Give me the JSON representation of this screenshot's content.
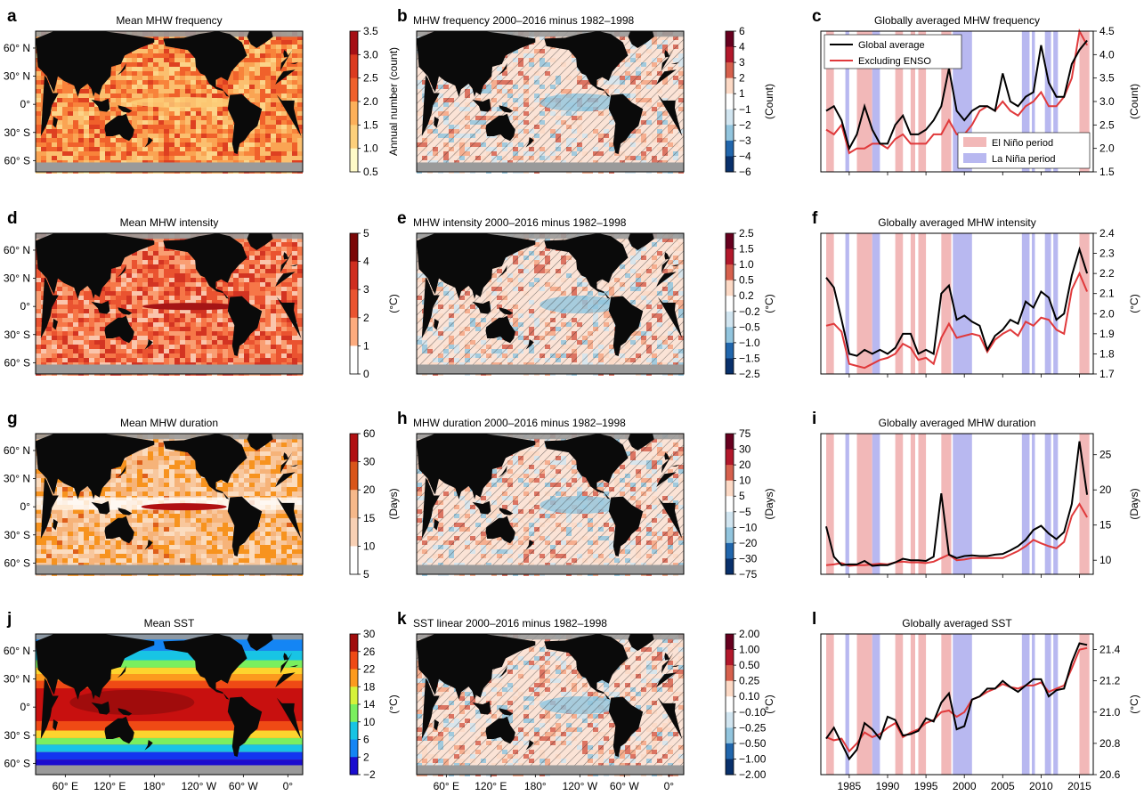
{
  "colors": {
    "land": "#0a0a0a",
    "ice": "#9a9a9a",
    "el_nino": "#f2b8b8",
    "la_nina": "#b8b8f0",
    "global_line": "#000000",
    "exclude_line": "#e0393b"
  },
  "map_axes": {
    "lat_labels": [
      "60° N",
      "30° N",
      "0°",
      "30° S",
      "60° S"
    ],
    "lon_labels": [
      "60° E",
      "120° E",
      "180°",
      "120° W",
      "60° W",
      "0°"
    ]
  },
  "year_ticks": [
    "1985",
    "1990",
    "1995",
    "2000",
    "2005",
    "2010",
    "2015"
  ],
  "enso": {
    "el_nino": [
      [
        1982,
        1983
      ],
      [
        1986,
        1988
      ],
      [
        1991,
        1992
      ],
      [
        1993,
        1993.6
      ],
      [
        1994,
        1995
      ],
      [
        1997,
        1998.3
      ],
      [
        2015,
        2016.3
      ]
    ],
    "la_nina": [
      [
        1984.5,
        1985
      ],
      [
        1988,
        1989
      ],
      [
        1998.5,
        2001
      ],
      [
        2007.5,
        2008.5
      ],
      [
        2008.8,
        2009.2
      ],
      [
        2010.5,
        2011.3
      ],
      [
        2011.6,
        2012.2
      ]
    ]
  },
  "legend": {
    "global": "Global average",
    "excluding": "Excluding ENSO",
    "el_nino": "El Niño period",
    "la_nina": "La Niña period"
  },
  "rows": [
    {
      "map_letter": "a",
      "map_title": "Mean MHW frequency",
      "map_cmap": "seq_orange",
      "map_cbar_label": "Annual number (count)",
      "map_cbar_ticks": [
        "3.5",
        "3.0",
        "2.5",
        "2.0",
        "1.5",
        "1.0",
        "0.5"
      ],
      "diff_letter": "b",
      "diff_title": "MHW frequency 2000–2016 minus 1982–1998",
      "diff_cbar_label": "(Count)",
      "diff_cbar_ticks": [
        "6",
        "4",
        "3",
        "2",
        "1",
        "−1",
        "−2",
        "−3",
        "−4",
        "−6"
      ],
      "ts_letter": "c",
      "ts_title": "Globally averaged MHW frequency",
      "ts_ylabel": "(Count)",
      "ts_show_legend": true
    },
    {
      "map_letter": "d",
      "map_title": "Mean MHW intensity",
      "map_cmap": "seq_red",
      "map_cbar_label": "(°C)",
      "map_cbar_ticks": [
        "5",
        "4",
        "3",
        "2",
        "1",
        "0"
      ],
      "diff_letter": "e",
      "diff_title": "MHW intensity 2000–2016 minus 1982–1998",
      "diff_cbar_label": "(°C)",
      "diff_cbar_ticks": [
        "2.5",
        "1.5",
        "1.0",
        "0.5",
        "0.2",
        "−0.2",
        "−0.5",
        "−1.0",
        "−1.5",
        "−2.5"
      ],
      "ts_letter": "f",
      "ts_title": "Globally averaged MHW intensity",
      "ts_ylabel": "(°C)",
      "ts_show_legend": false
    },
    {
      "map_letter": "g",
      "map_title": "Mean MHW duration",
      "map_cmap": "seq_dur",
      "map_cbar_label": "(Days)",
      "map_cbar_ticks": [
        "60",
        "30",
        "20",
        "15",
        "10",
        "5"
      ],
      "diff_letter": "h",
      "diff_title": "MHW duration 2000–2016 minus 1982–1998",
      "diff_cbar_label": "(Days)",
      "diff_cbar_ticks": [
        "75",
        "30",
        "20",
        "10",
        "5",
        "−5",
        "−10",
        "−20",
        "−30",
        "−75"
      ],
      "ts_letter": "i",
      "ts_title": "Globally averaged MHW duration",
      "ts_ylabel": "(Days)",
      "ts_show_legend": false
    },
    {
      "map_letter": "j",
      "map_title": "Mean SST",
      "map_cmap": "jet",
      "map_cbar_label": "(°C)",
      "map_cbar_ticks": [
        "30",
        "26",
        "22",
        "18",
        "14",
        "10",
        "6",
        "2",
        "−2"
      ],
      "diff_letter": "k",
      "diff_title": "SST linear 2000–2016 minus 1982–1998",
      "diff_cbar_label": "(°C)",
      "diff_cbar_ticks": [
        "2.00",
        "1.00",
        "0.50",
        "0.25",
        "0.10",
        "−0.10",
        "−0.25",
        "−0.50",
        "−1.00",
        "−2.00"
      ],
      "ts_letter": "l",
      "ts_title": "Globally averaged SST",
      "ts_ylabel": "(°C)",
      "ts_show_legend": false
    }
  ],
  "chart_data": [
    {
      "type": "line",
      "panel": "c",
      "title": "Globally averaged MHW frequency",
      "ylabel": "(Count)",
      "ylim": [
        1.5,
        4.5
      ],
      "yticks": [
        "1.5",
        "2.0",
        "2.5",
        "3.0",
        "3.5",
        "4.0",
        "4.5"
      ],
      "x": [
        1982,
        1983,
        1984,
        1985,
        1986,
        1987,
        1988,
        1989,
        1990,
        1991,
        1992,
        1993,
        1994,
        1995,
        1996,
        1997,
        1998,
        1999,
        2000,
        2001,
        2002,
        2003,
        2004,
        2005,
        2006,
        2007,
        2008,
        2009,
        2010,
        2011,
        2012,
        2013,
        2014,
        2015,
        2016
      ],
      "series": [
        {
          "name": "Global average",
          "values": [
            2.8,
            2.9,
            2.6,
            2.0,
            2.3,
            2.9,
            2.4,
            2.1,
            2.1,
            2.5,
            2.7,
            2.3,
            2.3,
            2.4,
            2.6,
            2.9,
            3.7,
            2.8,
            2.6,
            2.8,
            2.9,
            2.9,
            2.8,
            3.6,
            3.0,
            2.9,
            3.1,
            3.2,
            4.2,
            3.4,
            3.1,
            3.1,
            3.8,
            4.1,
            4.3
          ]
        },
        {
          "name": "Excluding ENSO",
          "values": [
            2.4,
            2.3,
            2.5,
            1.9,
            2.0,
            2.0,
            2.1,
            2.1,
            2.0,
            2.2,
            2.3,
            2.1,
            2.1,
            2.1,
            2.3,
            2.3,
            2.6,
            2.3,
            2.3,
            2.5,
            2.8,
            2.9,
            2.8,
            3.0,
            2.8,
            2.7,
            2.9,
            3.0,
            3.2,
            2.9,
            2.9,
            3.1,
            3.5,
            4.5,
            4.2
          ]
        }
      ]
    },
    {
      "type": "line",
      "panel": "f",
      "title": "Globally averaged MHW intensity",
      "ylabel": "(°C)",
      "ylim": [
        1.7,
        2.4
      ],
      "yticks": [
        "1.7",
        "1.8",
        "1.9",
        "2.0",
        "2.1",
        "2.2",
        "2.3",
        "2.4"
      ],
      "x": [
        1982,
        1983,
        1984,
        1985,
        1986,
        1987,
        1988,
        1989,
        1990,
        1991,
        1992,
        1993,
        1994,
        1995,
        1996,
        1997,
        1998,
        1999,
        2000,
        2001,
        2002,
        2003,
        2004,
        2005,
        2006,
        2007,
        2008,
        2009,
        2010,
        2011,
        2012,
        2013,
        2014,
        2015,
        2016
      ],
      "series": [
        {
          "name": "Global average",
          "values": [
            2.18,
            2.13,
            1.97,
            1.8,
            1.79,
            1.82,
            1.8,
            1.82,
            1.8,
            1.83,
            1.9,
            1.9,
            1.8,
            1.82,
            1.8,
            2.1,
            2.14,
            1.97,
            1.99,
            1.96,
            1.94,
            1.82,
            1.89,
            1.92,
            1.97,
            1.95,
            2.06,
            2.03,
            2.11,
            2.08,
            1.97,
            2.0,
            2.19,
            2.32,
            2.2
          ]
        },
        {
          "name": "Excluding ENSO",
          "values": [
            1.94,
            1.95,
            1.91,
            1.75,
            1.74,
            1.73,
            1.75,
            1.77,
            1.78,
            1.8,
            1.85,
            1.83,
            1.77,
            1.78,
            1.75,
            1.88,
            1.95,
            1.88,
            1.89,
            1.9,
            1.89,
            1.81,
            1.87,
            1.9,
            1.92,
            1.89,
            1.96,
            1.94,
            1.98,
            1.97,
            1.92,
            1.9,
            2.12,
            2.2,
            2.11
          ]
        }
      ]
    },
    {
      "type": "line",
      "panel": "i",
      "title": "Globally averaged MHW duration",
      "ylabel": "(Days)",
      "ylim": [
        8,
        28
      ],
      "yticks": [
        "10",
        "15",
        "20",
        "25"
      ],
      "x": [
        1982,
        1983,
        1984,
        1985,
        1986,
        1987,
        1988,
        1989,
        1990,
        1991,
        1992,
        1993,
        1994,
        1995,
        1996,
        1997,
        1998,
        1999,
        2000,
        2001,
        2002,
        2003,
        2004,
        2005,
        2006,
        2007,
        2008,
        2009,
        2010,
        2011,
        2012,
        2013,
        2014,
        2015,
        2016
      ],
      "series": [
        {
          "name": "Global average",
          "values": [
            14.8,
            10.5,
            9.3,
            9.4,
            9.4,
            9.9,
            9.2,
            9.3,
            9.3,
            9.7,
            10.2,
            10.0,
            10.0,
            9.9,
            10.5,
            19.5,
            10.8,
            10.3,
            10.6,
            10.7,
            10.6,
            10.6,
            10.8,
            10.9,
            11.4,
            12.0,
            12.9,
            14.3,
            14.9,
            13.8,
            13.0,
            14.0,
            18.0,
            26.9,
            19.3
          ]
        },
        {
          "name": "Excluding ENSO",
          "values": [
            9.3,
            9.4,
            9.6,
            9.2,
            9.3,
            9.3,
            9.4,
            9.5,
            9.4,
            9.7,
            9.8,
            9.7,
            9.7,
            9.6,
            9.8,
            10.3,
            10.8,
            10.0,
            10.1,
            10.3,
            10.3,
            10.3,
            10.3,
            10.3,
            10.8,
            11.3,
            12.0,
            12.9,
            12.4,
            12.0,
            11.7,
            12.6,
            16.3,
            18.0,
            16.1
          ]
        }
      ]
    },
    {
      "type": "line",
      "panel": "l",
      "title": "Globally averaged SST",
      "ylabel": "(°C)",
      "ylim": [
        20.6,
        21.5
      ],
      "yticks": [
        "20.6",
        "20.8",
        "21.0",
        "21.2",
        "21.4"
      ],
      "x": [
        1982,
        1983,
        1984,
        1985,
        1986,
        1987,
        1988,
        1989,
        1990,
        1991,
        1992,
        1993,
        1994,
        1995,
        1996,
        1997,
        1998,
        1999,
        2000,
        2001,
        2002,
        2003,
        2004,
        2005,
        2006,
        2007,
        2008,
        2009,
        2010,
        2011,
        2012,
        2013,
        2014,
        2015,
        2016
      ],
      "series": [
        {
          "name": "Global average",
          "values": [
            20.83,
            20.9,
            20.8,
            20.7,
            20.76,
            20.93,
            20.89,
            20.83,
            20.97,
            20.95,
            20.85,
            20.86,
            20.88,
            20.96,
            20.94,
            21.06,
            21.12,
            20.89,
            20.91,
            21.08,
            21.1,
            21.15,
            21.15,
            21.2,
            21.16,
            21.13,
            21.17,
            21.21,
            21.21,
            21.1,
            21.14,
            21.15,
            21.32,
            21.44,
            21.43
          ]
        },
        {
          "name": "Excluding ENSO",
          "values": [
            20.84,
            20.82,
            20.83,
            20.75,
            20.8,
            20.87,
            20.84,
            20.86,
            20.9,
            20.93,
            20.84,
            20.87,
            20.89,
            20.93,
            20.95,
            21.0,
            21.01,
            20.97,
            21.0,
            21.08,
            21.1,
            21.13,
            21.15,
            21.18,
            21.16,
            21.15,
            21.17,
            21.17,
            21.19,
            21.13,
            21.15,
            21.17,
            21.28,
            21.4,
            21.41
          ]
        }
      ]
    }
  ]
}
